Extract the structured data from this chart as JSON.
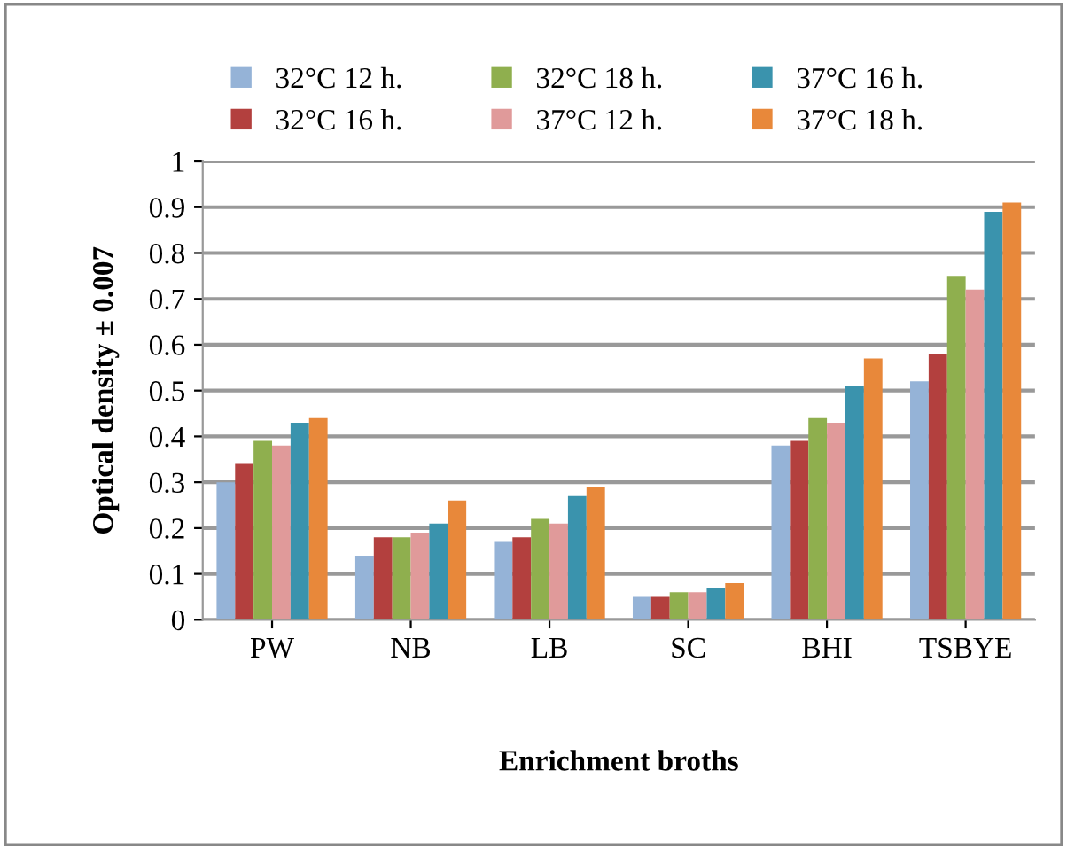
{
  "chart_data": {
    "type": "bar",
    "xlabel": "Enrichment broths",
    "ylabel": "Optical density ± 0.007",
    "categories": [
      "PW",
      "NB",
      "LB",
      "SC",
      "BHI",
      "TSBYE"
    ],
    "series": [
      {
        "name": "32°C 12 h.",
        "color": "#95b3d7",
        "values": [
          0.3,
          0.14,
          0.17,
          0.05,
          0.38,
          0.52
        ]
      },
      {
        "name": "32°C 16 h.",
        "color": "#b3403e",
        "values": [
          0.34,
          0.18,
          0.18,
          0.05,
          0.39,
          0.58
        ]
      },
      {
        "name": "32°C 18 h.",
        "color": "#8faf4e",
        "values": [
          0.39,
          0.18,
          0.22,
          0.06,
          0.44,
          0.75
        ]
      },
      {
        "name": "37°C 12 h.",
        "color": "#e09a9a",
        "values": [
          0.38,
          0.19,
          0.21,
          0.06,
          0.43,
          0.72
        ]
      },
      {
        "name": "37°C 16 h.",
        "color": "#3a93ad",
        "values": [
          0.43,
          0.21,
          0.27,
          0.07,
          0.51,
          0.89
        ]
      },
      {
        "name": "37°C 18 h.",
        "color": "#e8883a",
        "values": [
          0.44,
          0.26,
          0.29,
          0.08,
          0.57,
          0.91
        ]
      }
    ],
    "ylim": [
      0,
      1
    ],
    "yticks": [
      0,
      0.1,
      0.2,
      0.3,
      0.4,
      0.5,
      0.6,
      0.7,
      0.8,
      0.9,
      1
    ],
    "grid": "y",
    "legend": "top"
  }
}
